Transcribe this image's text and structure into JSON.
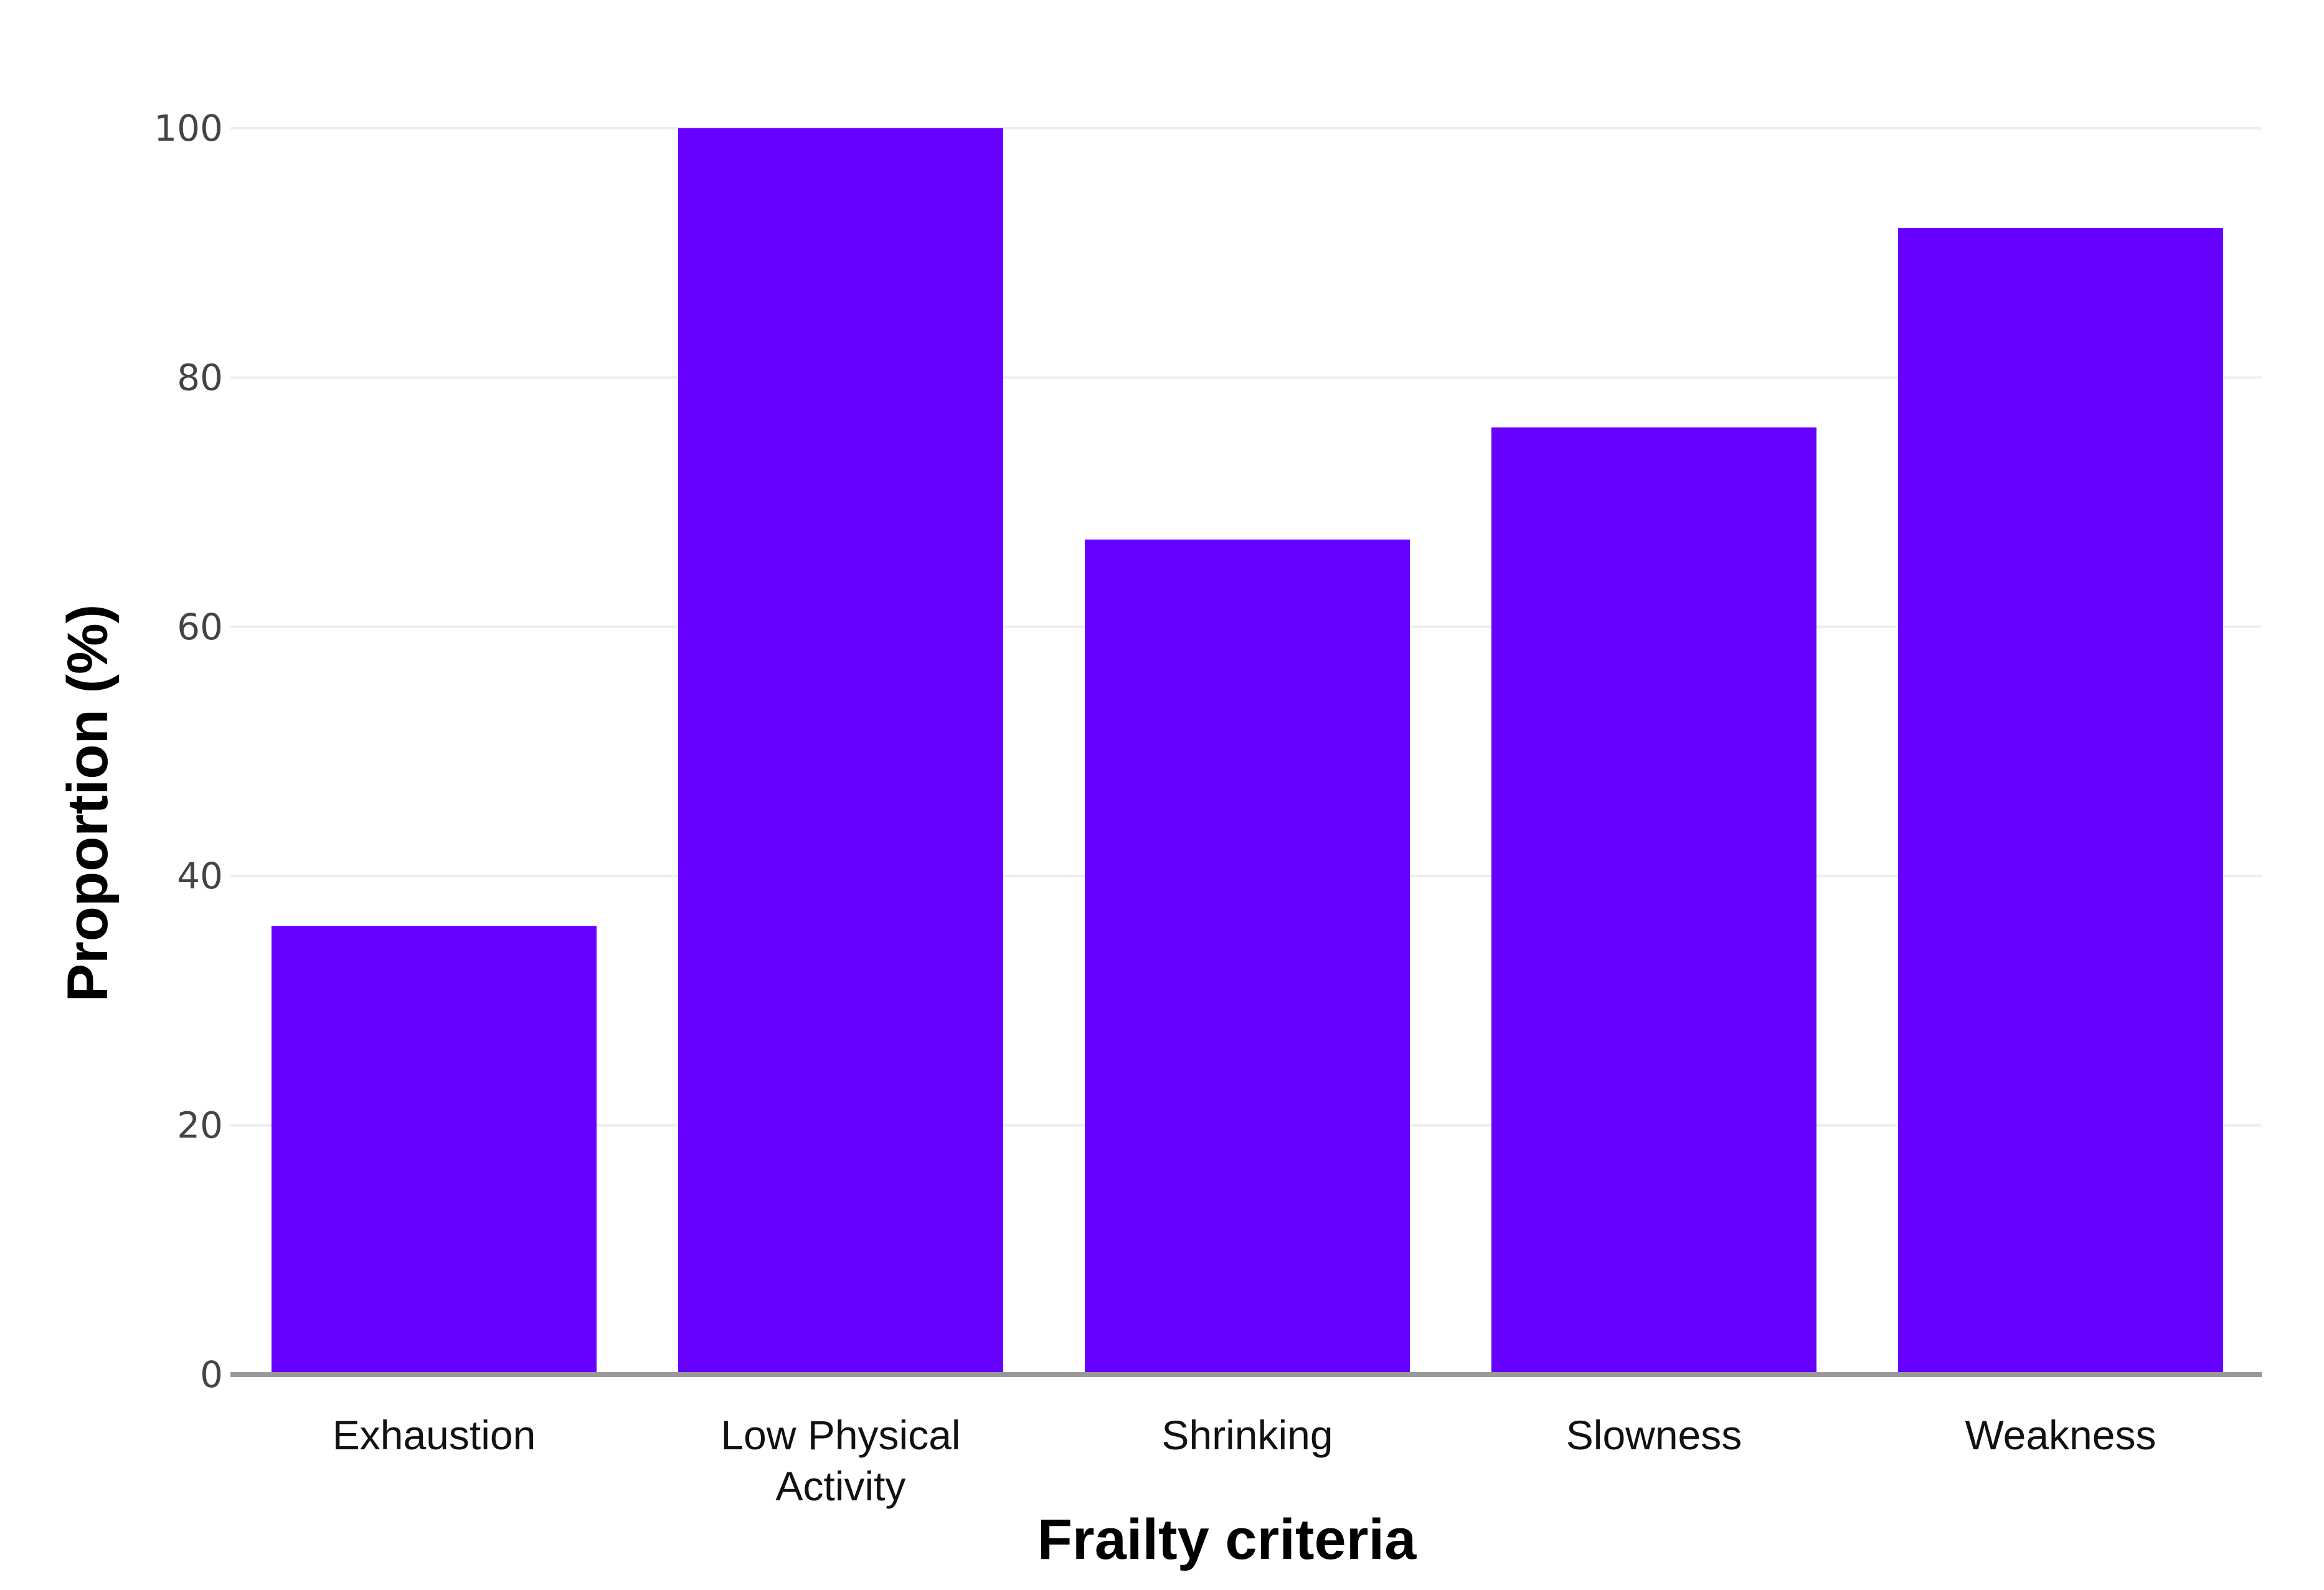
{
  "chart_data": {
    "type": "bar",
    "categories": [
      "Exhaustion",
      "Low Physical Activity",
      "Shrinking",
      "Slowness",
      "Weakness"
    ],
    "category_lines": [
      [
        "Exhaustion"
      ],
      [
        "Low Physical",
        "Activity"
      ],
      [
        "Shrinking"
      ],
      [
        "Slowness"
      ],
      [
        "Weakness"
      ]
    ],
    "values": [
      36,
      100,
      67,
      76,
      92
    ],
    "xlabel": "Frailty criteria",
    "ylabel": "Proportion (%)",
    "ylim": [
      0,
      100
    ],
    "yticks": [
      0,
      20,
      40,
      60,
      80,
      100
    ],
    "grid": true,
    "legend": "none",
    "colors": {
      "bar": "#6600ff",
      "grid": "#eeeeee",
      "baseline": "#999999"
    }
  }
}
